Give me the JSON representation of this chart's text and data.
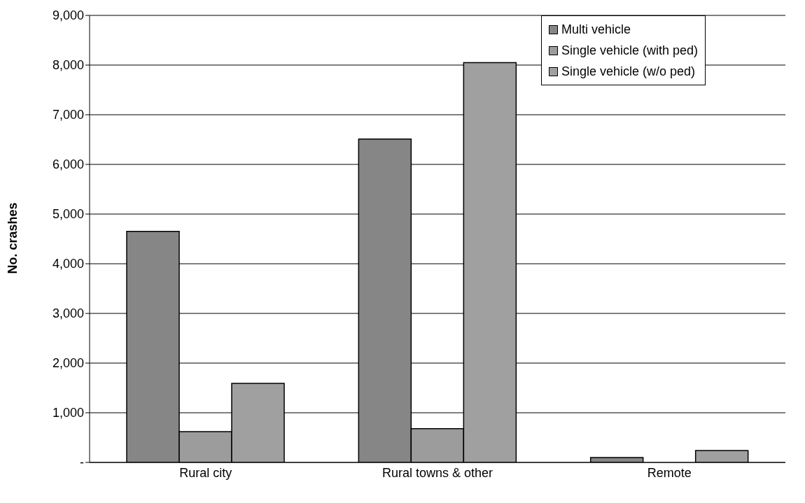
{
  "chart_data": {
    "type": "bar",
    "ylabel": "No. crashes",
    "categories": [
      "Rural city",
      "Rural towns & other",
      "Remote"
    ],
    "series": [
      {
        "name": "Multi vehicle",
        "color": "#868686",
        "values": [
          4650,
          6510,
          100
        ]
      },
      {
        "name": "Single vehicle (with ped)",
        "color": "#9c9c9c",
        "values": [
          620,
          680,
          0
        ]
      },
      {
        "name": "Single vehicle (w/o ped)",
        "color": "#a0a0a0",
        "values": [
          1590,
          8050,
          240
        ]
      }
    ],
    "ylim": [
      0,
      9000
    ],
    "yticks": [
      {
        "value": 0,
        "label": "-"
      },
      {
        "value": 1000,
        "label": "1,000"
      },
      {
        "value": 2000,
        "label": "2,000"
      },
      {
        "value": 3000,
        "label": "3,000"
      },
      {
        "value": 4000,
        "label": "4,000"
      },
      {
        "value": 5000,
        "label": "5,000"
      },
      {
        "value": 6000,
        "label": "6,000"
      },
      {
        "value": 7000,
        "label": "7,000"
      },
      {
        "value": 8000,
        "label": "8,000"
      },
      {
        "value": 9000,
        "label": "9,000"
      }
    ],
    "grid": "y",
    "legend": "top right"
  }
}
